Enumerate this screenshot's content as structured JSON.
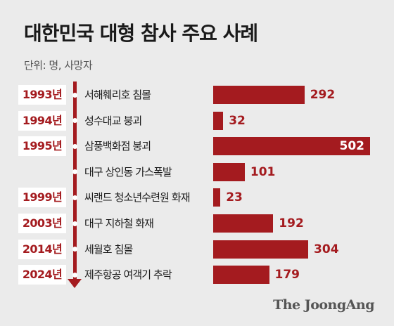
{
  "header": {
    "title": "대한민국 대형 참사 주요 사례",
    "unit": "단위: 명, 사망자"
  },
  "colors": {
    "accent": "#a41b1f",
    "background": "#ebebeb",
    "year_box": "#ffffff",
    "text": "#1a1a1a"
  },
  "logo": "The JoongAng",
  "chart_data": {
    "type": "bar",
    "orientation": "horizontal",
    "title": "대한민국 대형 참사 주요 사례",
    "unit": "단위: 명, 사망자",
    "categories": [
      "서해훼리호 침몰",
      "성수대교 붕괴",
      "삼풍백화점 붕괴",
      "대구 상인동 가스폭발",
      "씨랜드 청소년수련원 화재",
      "대구 지하철 화재",
      "세월호 침몰",
      "제주항공 여객기 추락"
    ],
    "years": [
      "1993년",
      "1994년",
      "1995년",
      "",
      "1999년",
      "2003년",
      "2014년",
      "2024년"
    ],
    "values": [
      292,
      32,
      502,
      101,
      23,
      192,
      304,
      179
    ],
    "xlim": [
      0,
      502
    ],
    "grid": false,
    "legend": "none"
  }
}
